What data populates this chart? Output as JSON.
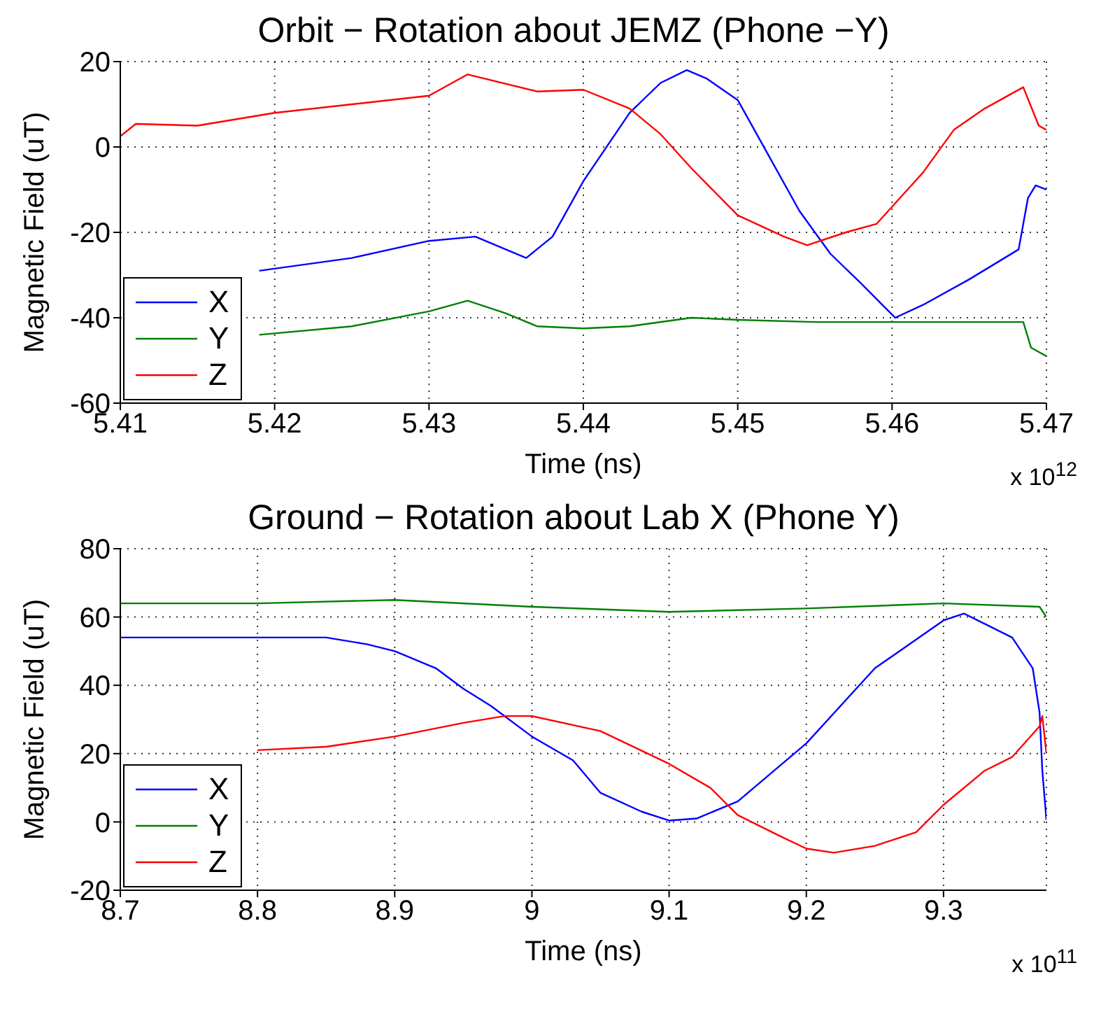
{
  "chart_data": [
    {
      "type": "line",
      "title": "Orbit − Rotation about JEMZ (Phone −Y)",
      "xlabel": "Time (ns)",
      "ylabel": "Magnetic Field (uT)",
      "annotations": [
        "x 10$^{12}$"
      ],
      "xlim": [
        5.41,
        5.47
      ],
      "xticks": [
        5.41,
        5.42,
        5.43,
        5.44,
        5.45,
        5.46,
        5.47
      ],
      "ylim": [
        -60,
        20
      ],
      "yticks": [
        -60,
        -40,
        -20,
        0,
        20
      ],
      "grid": true,
      "legend": "bottom left",
      "line_style": "solid",
      "marker": "none",
      "series": [
        {
          "name": "X",
          "color": "#0000ff",
          "x": [
            5.419,
            5.425,
            5.43,
            5.433,
            5.4363,
            5.438,
            5.44,
            5.443,
            5.445,
            5.4467,
            5.448,
            5.45,
            5.452,
            5.454,
            5.456,
            5.458,
            5.4602,
            5.462,
            5.465,
            5.4682,
            5.4688,
            5.4693,
            5.47
          ],
          "values": [
            -29,
            -26,
            -22,
            -21,
            -26,
            -21,
            -8,
            8,
            15,
            18,
            16,
            11,
            -2,
            -15,
            -25,
            -32,
            -40,
            -37,
            -31,
            -24,
            -12,
            -9,
            -10
          ]
        },
        {
          "name": "Y",
          "color": "#008000",
          "x": [
            5.419,
            5.425,
            5.43,
            5.4325,
            5.435,
            5.437,
            5.44,
            5.443,
            5.447,
            5.45,
            5.455,
            5.46,
            5.465,
            5.4685,
            5.469,
            5.47
          ],
          "values": [
            -44,
            -42,
            -38.5,
            -36,
            -39,
            -42,
            -42.5,
            -42,
            -40,
            -40.5,
            -41,
            -41,
            -41,
            -41,
            -47,
            -49
          ]
        },
        {
          "name": "Z",
          "color": "#ff0000",
          "x": [
            5.41,
            5.411,
            5.415,
            5.42,
            5.43,
            5.4325,
            5.437,
            5.44,
            5.443,
            5.445,
            5.447,
            5.45,
            5.453,
            5.4545,
            5.457,
            5.459,
            5.462,
            5.464,
            5.466,
            5.4685,
            5.4695,
            5.47
          ],
          "values": [
            2.5,
            5.4,
            5,
            8,
            12,
            17,
            13,
            13.4,
            9,
            3,
            -5,
            -16,
            -21,
            -23,
            -20,
            -18,
            -6,
            4,
            9,
            14,
            5,
            4
          ]
        }
      ]
    },
    {
      "type": "line",
      "title": "Ground − Rotation about Lab X (Phone Y)",
      "xlabel": "Time (ns)",
      "ylabel": "Magnetic Field (uT)",
      "annotations": [
        "x 10$^{11}$"
      ],
      "xlim": [
        8.7,
        9.375
      ],
      "xticks": [
        8.7,
        8.8,
        8.9,
        9,
        9.1,
        9.2,
        9.3
      ],
      "ylim": [
        -20,
        80
      ],
      "yticks": [
        -20,
        0,
        20,
        40,
        60,
        80
      ],
      "grid": true,
      "legend": "bottom left",
      "line_style": "solid",
      "marker": "none",
      "series": [
        {
          "name": "X",
          "color": "#0000ff",
          "x": [
            8.7,
            8.8,
            8.85,
            8.88,
            8.9,
            8.93,
            8.95,
            8.97,
            9,
            9.03,
            9.05,
            9.08,
            9.1,
            9.12,
            9.15,
            9.2,
            9.25,
            9.3,
            9.315,
            9.33,
            9.35,
            9.365,
            9.37,
            9.372,
            9.375
          ],
          "values": [
            54,
            54,
            54,
            52,
            50,
            45,
            39,
            34,
            25,
            18,
            8.5,
            3,
            0.4,
            1,
            6,
            23,
            45,
            59,
            61,
            58,
            54,
            45,
            32,
            15,
            0.5
          ]
        },
        {
          "name": "Y",
          "color": "#008000",
          "x": [
            8.7,
            8.8,
            8.9,
            9,
            9.1,
            9.2,
            9.3,
            9.37,
            9.375
          ],
          "values": [
            64,
            64,
            65,
            63,
            61.5,
            62.5,
            64,
            63,
            60
          ]
        },
        {
          "name": "Z",
          "color": "#ff0000",
          "x": [
            8.8,
            8.85,
            8.9,
            8.95,
            8.98,
            9,
            9.05,
            9.1,
            9.13,
            9.15,
            9.18,
            9.2,
            9.22,
            9.25,
            9.28,
            9.3,
            9.33,
            9.35,
            9.37,
            9.372,
            9.375
          ],
          "values": [
            21,
            22,
            25,
            29,
            31,
            31,
            26.6,
            17,
            10,
            2,
            -4,
            -7.8,
            -9,
            -7,
            -3,
            5,
            15,
            19,
            28,
            31,
            20
          ]
        }
      ]
    }
  ]
}
